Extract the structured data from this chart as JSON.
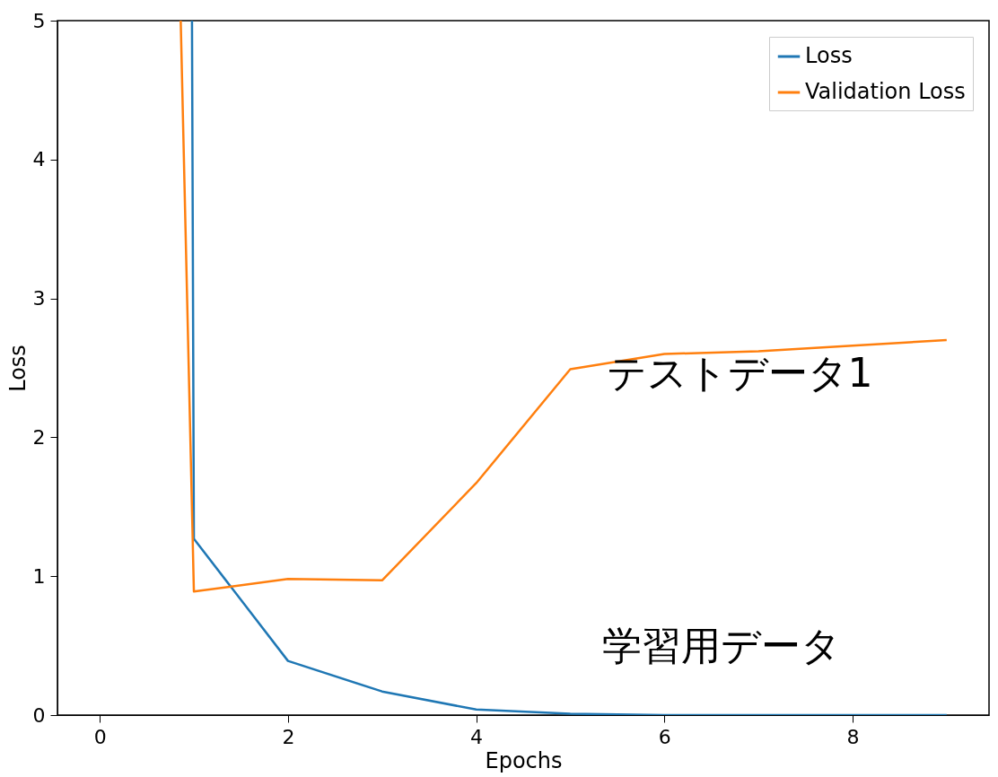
{
  "chart_data": {
    "type": "line",
    "xlabel": "Epochs",
    "ylabel": "Loss",
    "series": [
      {
        "name": "Loss",
        "color": "#1f77b4",
        "x": [
          0.98,
          1,
          2,
          3,
          4,
          5,
          6,
          7,
          8,
          9
        ],
        "values": [
          5,
          1.27,
          0.39,
          0.17,
          0.04,
          0.01,
          0,
          0,
          0,
          0
        ]
      },
      {
        "name": "Validation Loss",
        "color": "#ff7f0e",
        "x": [
          0.86,
          1,
          2,
          3,
          4,
          5,
          6,
          7,
          8,
          9
        ],
        "values": [
          5,
          0.89,
          0.98,
          0.97,
          1.67,
          2.49,
          2.6,
          2.62,
          2.66,
          2.7
        ]
      }
    ],
    "xlim": [
      -0.45,
      9.45
    ],
    "xticks": [
      0,
      2,
      4,
      6,
      8
    ],
    "ylim": [
      0,
      5
    ],
    "yticks": [
      0,
      1,
      2,
      3,
      4,
      5
    ],
    "annotations": [
      "テストデータ1",
      "学習用データ"
    ],
    "legend": "top right",
    "grid": false,
    "marker": "none",
    "line_style": "solid"
  }
}
